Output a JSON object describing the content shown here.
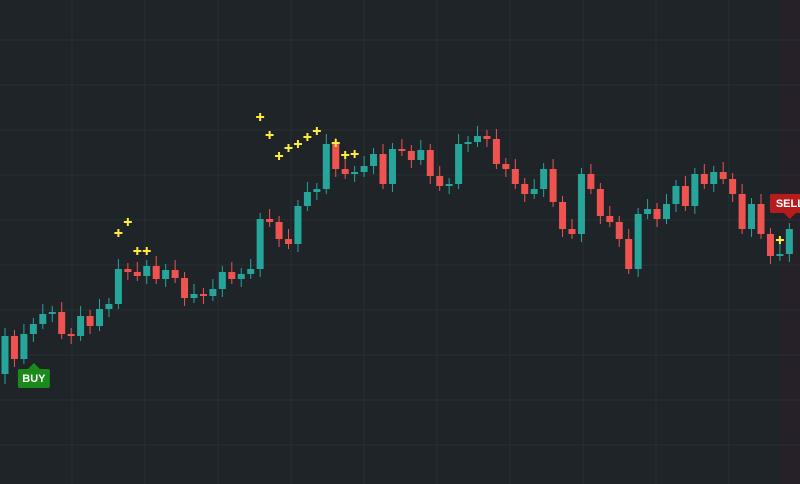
{
  "chart_data": {
    "type": "candlestick",
    "ylim": [
      0,
      484
    ],
    "up_color": "#26a69a",
    "down_color": "#ef5350",
    "marker_color": "#ffeb3b",
    "open": [
      110,
      148,
      125,
      150,
      160,
      170,
      172,
      150,
      148,
      168,
      158,
      175,
      180,
      215,
      212,
      208,
      218,
      205,
      214,
      206,
      186,
      190,
      188,
      195,
      212,
      205,
      210,
      215,
      265,
      262,
      245,
      240,
      278,
      292,
      295,
      340,
      315,
      310,
      312,
      318,
      330,
      300,
      335,
      333,
      324,
      334,
      308,
      298,
      300,
      340,
      342,
      348,
      345,
      320,
      315,
      300,
      290,
      295,
      315,
      282,
      255,
      250,
      310,
      295,
      268,
      262,
      245,
      215,
      270,
      275,
      265,
      280,
      298,
      278,
      310,
      300,
      312,
      305,
      290,
      255,
      280,
      250,
      228,
      230
    ],
    "high": [
      156,
      154,
      160,
      166,
      180,
      178,
      182,
      156,
      178,
      174,
      185,
      186,
      225,
      221,
      222,
      224,
      228,
      220,
      224,
      212,
      200,
      196,
      205,
      218,
      222,
      216,
      225,
      271,
      275,
      268,
      255,
      284,
      302,
      301,
      350,
      346,
      325,
      318,
      328,
      336,
      340,
      341,
      345,
      339,
      344,
      340,
      318,
      306,
      350,
      348,
      358,
      354,
      355,
      326,
      325,
      306,
      305,
      321,
      325,
      288,
      265,
      316,
      320,
      301,
      278,
      268,
      255,
      276,
      285,
      281,
      290,
      304,
      308,
      316,
      320,
      318,
      322,
      311,
      300,
      286,
      290,
      256,
      240,
      261
    ],
    "low": [
      100,
      117,
      120,
      142,
      155,
      162,
      145,
      140,
      143,
      150,
      153,
      167,
      175,
      204,
      203,
      200,
      200,
      197,
      201,
      178,
      181,
      180,
      183,
      187,
      200,
      197,
      205,
      207,
      257,
      237,
      235,
      232,
      273,
      284,
      290,
      307,
      305,
      302,
      307,
      310,
      295,
      292,
      328,
      316,
      319,
      300,
      293,
      290,
      295,
      332,
      337,
      337,
      315,
      307,
      295,
      282,
      285,
      287,
      277,
      247,
      245,
      242,
      290,
      260,
      257,
      237,
      210,
      207,
      265,
      257,
      260,
      272,
      273,
      270,
      295,
      292,
      300,
      282,
      250,
      247,
      245,
      220,
      223,
      222
    ],
    "close": [
      148,
      125,
      150,
      160,
      170,
      172,
      150,
      148,
      168,
      158,
      175,
      180,
      215,
      212,
      208,
      218,
      205,
      214,
      206,
      186,
      190,
      188,
      195,
      212,
      205,
      210,
      215,
      265,
      262,
      245,
      240,
      278,
      292,
      295,
      340,
      315,
      310,
      312,
      318,
      330,
      300,
      335,
      333,
      324,
      334,
      308,
      298,
      300,
      340,
      342,
      348,
      345,
      320,
      315,
      300,
      290,
      295,
      315,
      282,
      255,
      250,
      310,
      295,
      268,
      262,
      245,
      215,
      270,
      275,
      265,
      280,
      298,
      278,
      310,
      300,
      312,
      305,
      290,
      255,
      280,
      250,
      228,
      230,
      255
    ],
    "markers": [
      {
        "index": 12,
        "value": 251
      },
      {
        "index": 13,
        "value": 262
      },
      {
        "index": 14,
        "value": 233
      },
      {
        "index": 15,
        "value": 233
      },
      {
        "index": 27,
        "value": 367
      },
      {
        "index": 28,
        "value": 349
      },
      {
        "index": 29,
        "value": 328
      },
      {
        "index": 30,
        "value": 336
      },
      {
        "index": 31,
        "value": 340
      },
      {
        "index": 32,
        "value": 347
      },
      {
        "index": 33,
        "value": 353
      },
      {
        "index": 35,
        "value": 341
      },
      {
        "index": 36,
        "value": 329
      },
      {
        "index": 37,
        "value": 330
      },
      {
        "index": 82,
        "value": 244
      }
    ],
    "signals": [
      {
        "label": "BUY",
        "index": 2,
        "value": 115,
        "color": "#1b8a1b"
      },
      {
        "label": "SELL",
        "index": 82,
        "value": 270,
        "color": "#b71c1c"
      }
    ]
  }
}
